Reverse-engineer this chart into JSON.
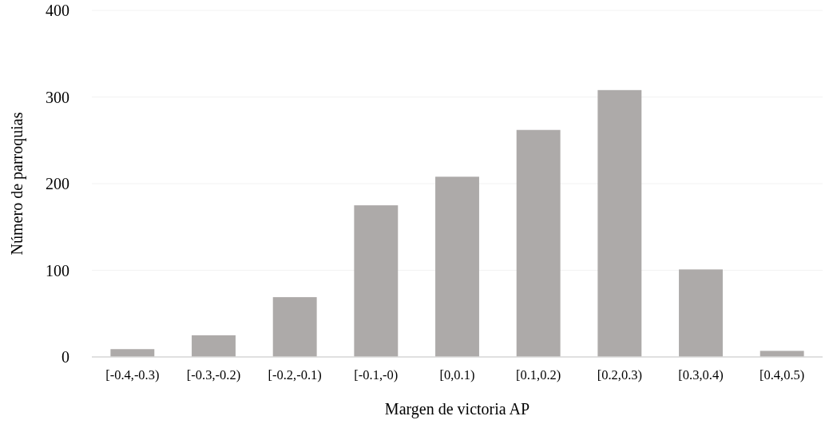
{
  "chart_data": {
    "type": "bar",
    "xlabel": "Margen de victoria AP",
    "ylabel": "Número de parroquias",
    "categories": [
      "[-0.4,-0.3)",
      "[-0.3,-0.2)",
      "[-0.2,-0.1)",
      "[-0.1,-0)",
      "[0,0.1)",
      "[0.1,0.2)",
      "[0.2,0.3)",
      "[0.3,0.4)",
      "[0.4,0.5)"
    ],
    "values": [
      9,
      25,
      69,
      175,
      208,
      262,
      308,
      101,
      7
    ],
    "color": "#adaaa9",
    "ylim": [
      0,
      400
    ],
    "yticks": [
      0,
      100,
      200,
      300,
      400
    ],
    "grid": "y"
  }
}
